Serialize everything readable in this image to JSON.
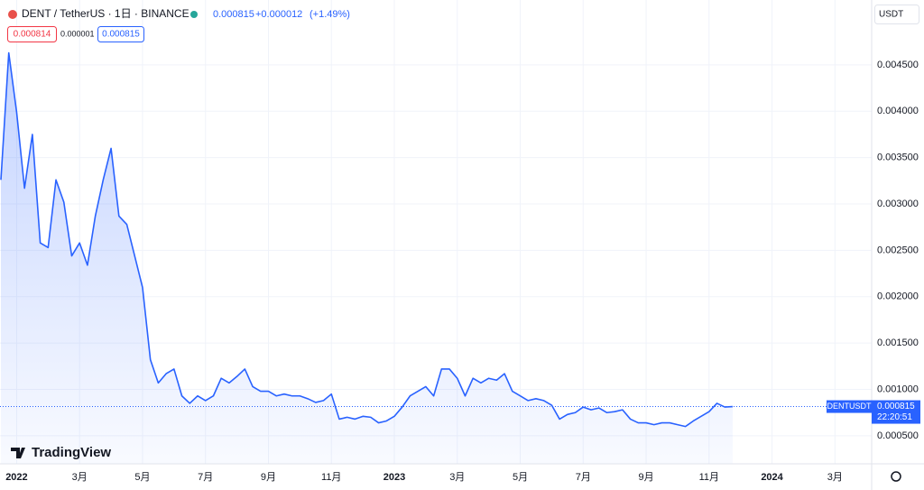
{
  "header": {
    "symbol": "DENT / TetherUS · 1日 · BINANCE",
    "price": "0.000815",
    "change": "+0.000012",
    "change_pct": "(+1.49%)",
    "sell": "0.000814",
    "spread": "0.000001",
    "buy": "0.000815",
    "currency": "USDT",
    "logo": "TradingView"
  },
  "price_tag": {
    "symbol": "DENTUSDT",
    "price": "0.000815",
    "countdown": "22:20:51"
  },
  "chart_data": {
    "type": "area",
    "categories": [
      null,
      null,
      "2022",
      null,
      null,
      null,
      null,
      null,
      null,
      null,
      "3月",
      null,
      null,
      null,
      null,
      null,
      null,
      null,
      "5月",
      null,
      null,
      null,
      null,
      null,
      null,
      null,
      "7月",
      null,
      null,
      null,
      null,
      null,
      null,
      null,
      "9月",
      null,
      null,
      null,
      null,
      null,
      null,
      null,
      "11月",
      null,
      null,
      null,
      null,
      null,
      null,
      null,
      "2023",
      null,
      null,
      null,
      null,
      null,
      null,
      null,
      "3月",
      null,
      null,
      null,
      null,
      null,
      null,
      null,
      "5月",
      null,
      null,
      null,
      null,
      null,
      null,
      null,
      "7月",
      null,
      null,
      null,
      null,
      null,
      null,
      null,
      "9月",
      null,
      null,
      null,
      null,
      null,
      null,
      null,
      "11月",
      null,
      null,
      null,
      null,
      null,
      null,
      null,
      "2024",
      null,
      null,
      null,
      null,
      null,
      null,
      null,
      "3月",
      null,
      null,
      null,
      null
    ],
    "series": [
      {
        "name": "DENTUSDT",
        "color": "#2962ff",
        "values": [
          0.00326,
          0.00463,
          0.00399,
          0.00317,
          0.00375,
          0.00258,
          0.00253,
          0.00326,
          0.00302,
          0.00244,
          0.00258,
          0.00234,
          0.00287,
          0.00326,
          0.0036,
          0.00287,
          0.00278,
          0.00244,
          0.0021,
          0.00132,
          0.00107,
          0.00117,
          0.00122,
          0.00093,
          0.00085,
          0.00093,
          0.00088,
          0.00093,
          0.00112,
          0.00107,
          0.00114,
          0.00122,
          0.00103,
          0.00098,
          0.00098,
          0.00093,
          0.00095,
          0.00093,
          0.00093,
          0.0009,
          0.00086,
          0.00088,
          0.00095,
          0.00068,
          0.0007,
          0.00068,
          0.00071,
          0.0007,
          0.00064,
          0.00066,
          0.00071,
          0.00081,
          0.00093,
          0.00098,
          0.00103,
          0.00093,
          0.00122,
          0.00122,
          0.00112,
          0.00093,
          0.00112,
          0.00107,
          0.00112,
          0.0011,
          0.00117,
          0.00098,
          0.00093,
          0.00088,
          0.0009,
          0.00088,
          0.00083,
          0.00068,
          0.00073,
          0.00075,
          0.00081,
          0.00078,
          0.0008,
          0.00075,
          0.00076,
          0.00078,
          0.00068,
          0.00064,
          0.00064,
          0.00062,
          0.00064,
          0.00064,
          0.00062,
          0.0006,
          0.00066,
          0.00071,
          0.00076,
          0.00085,
          0.00081,
          0.000815,
          null,
          null,
          null,
          null,
          null,
          null,
          null,
          null,
          null,
          null,
          null,
          null,
          null,
          null,
          null,
          null,
          null
        ]
      }
    ],
    "ylim": [
      0.0002,
      0.0052
    ],
    "yticks": [
      {
        "value": 0.0005,
        "label": "0.000500"
      },
      {
        "value": 0.001,
        "label": "0.001000"
      },
      {
        "value": 0.0015,
        "label": "0.001500"
      },
      {
        "value": 0.002,
        "label": "0.002000"
      },
      {
        "value": 0.0025,
        "label": "0.002500"
      },
      {
        "value": 0.003,
        "label": "0.003000"
      },
      {
        "value": 0.0035,
        "label": "0.003500"
      },
      {
        "value": 0.004,
        "label": "0.004000"
      },
      {
        "value": 0.0045,
        "label": "0.004500"
      }
    ],
    "grid": true
  }
}
